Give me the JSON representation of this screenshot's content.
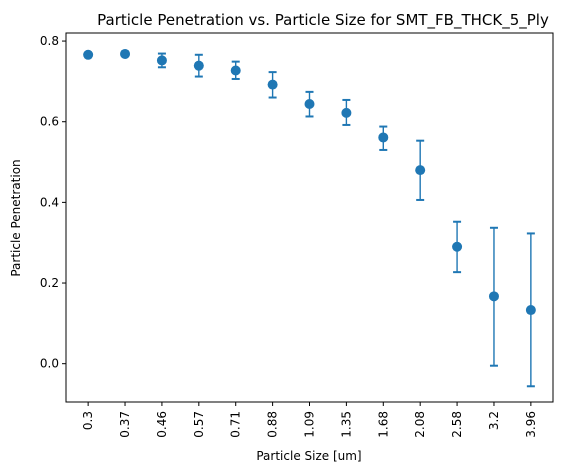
{
  "chart_data": {
    "type": "scatter",
    "title": "Particle Penetration vs. Particle Size for SMT_FB_THCK_5_Ply",
    "xlabel": "Particle Size [um]",
    "ylabel": "Particle Penetration",
    "categories": [
      "0.3",
      "0.37",
      "0.46",
      "0.57",
      "0.71",
      "0.88",
      "1.09",
      "1.35",
      "1.68",
      "2.08",
      "2.58",
      "3.2",
      "3.96"
    ],
    "series": [
      {
        "values": [
          0.766,
          0.768,
          0.752,
          0.739,
          0.727,
          0.692,
          0.644,
          0.622,
          0.561,
          0.48,
          0.29,
          0.167,
          0.133
        ],
        "error_low": [
          0.766,
          0.764,
          0.735,
          0.712,
          0.706,
          0.66,
          0.613,
          0.592,
          0.53,
          0.406,
          0.227,
          -0.005,
          -0.056
        ],
        "error_high": [
          0.766,
          0.774,
          0.769,
          0.766,
          0.749,
          0.723,
          0.674,
          0.654,
          0.588,
          0.553,
          0.352,
          0.337,
          0.323
        ]
      }
    ],
    "yticks": [
      "0.0",
      "0.2",
      "0.4",
      "0.6",
      "0.8"
    ],
    "ylim": [
      -0.095,
      0.82
    ],
    "grid": false,
    "colors": {
      "marker": "#1f77b4",
      "axis": "#000000"
    }
  }
}
